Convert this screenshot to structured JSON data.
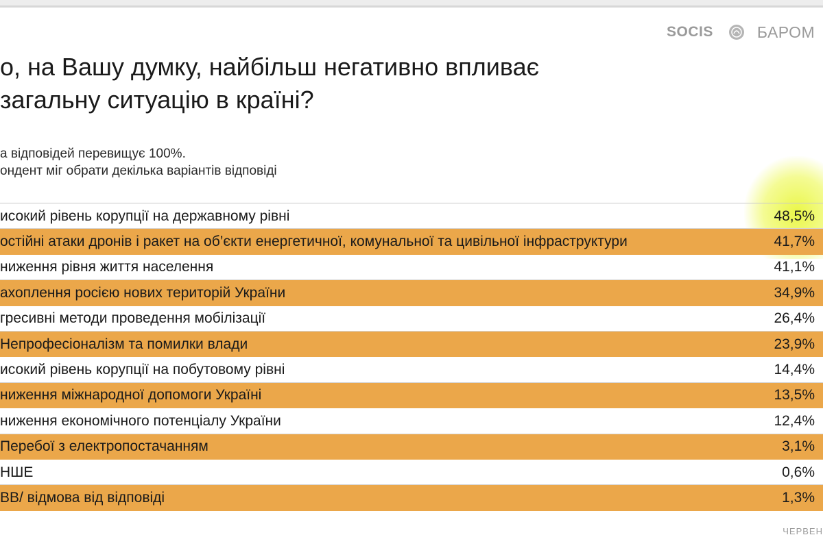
{
  "header": {
    "brand_left": "SOCIS",
    "brand_right": "БАРОМ"
  },
  "title": {
    "line1": "о, на Вашу думку, найбільш негативно впливає",
    "line2": "загальну ситуацію в країні?"
  },
  "note": {
    "line1": "а відповідей перевищує 100%.",
    "line2": "ондент міг обрати декілька варіантів відповіді"
  },
  "footer": {
    "text": "ЧЕРВЕН"
  },
  "colors": {
    "alt_row": "#eba74a",
    "highlight": "#e6f528"
  },
  "chart_data": {
    "type": "table",
    "rows": [
      {
        "label": "исокий рівень корупції на державному рівні",
        "value": "48,5%"
      },
      {
        "label": "остійні атаки дронів і ракет на об’єкти енергетичної, комунальної та цивільної інфраструктури",
        "value": "41,7%"
      },
      {
        "label": "ниження рівня життя населення",
        "value": "41,1%"
      },
      {
        "label": "ахоплення росією нових територій України",
        "value": "34,9%"
      },
      {
        "label": "гресивні методи проведення мобілізації",
        "value": "26,4%"
      },
      {
        "label": "Непрофесіоналізм та помилки влади",
        "value": "23,9%"
      },
      {
        "label": "исокий рівень корупції на побутовому рівні",
        "value": "14,4%"
      },
      {
        "label": "ниження міжнародної допомоги Україні",
        "value": "13,5%"
      },
      {
        "label": "ниження економічного потенціалу України",
        "value": "12,4%"
      },
      {
        "label": "Перебої з електропостачанням",
        "value": "3,1%"
      },
      {
        "label": "НШЕ",
        "value": "0,6%"
      },
      {
        "label": "ВВ/ відмова від відповіді",
        "value": "1,3%"
      }
    ]
  }
}
